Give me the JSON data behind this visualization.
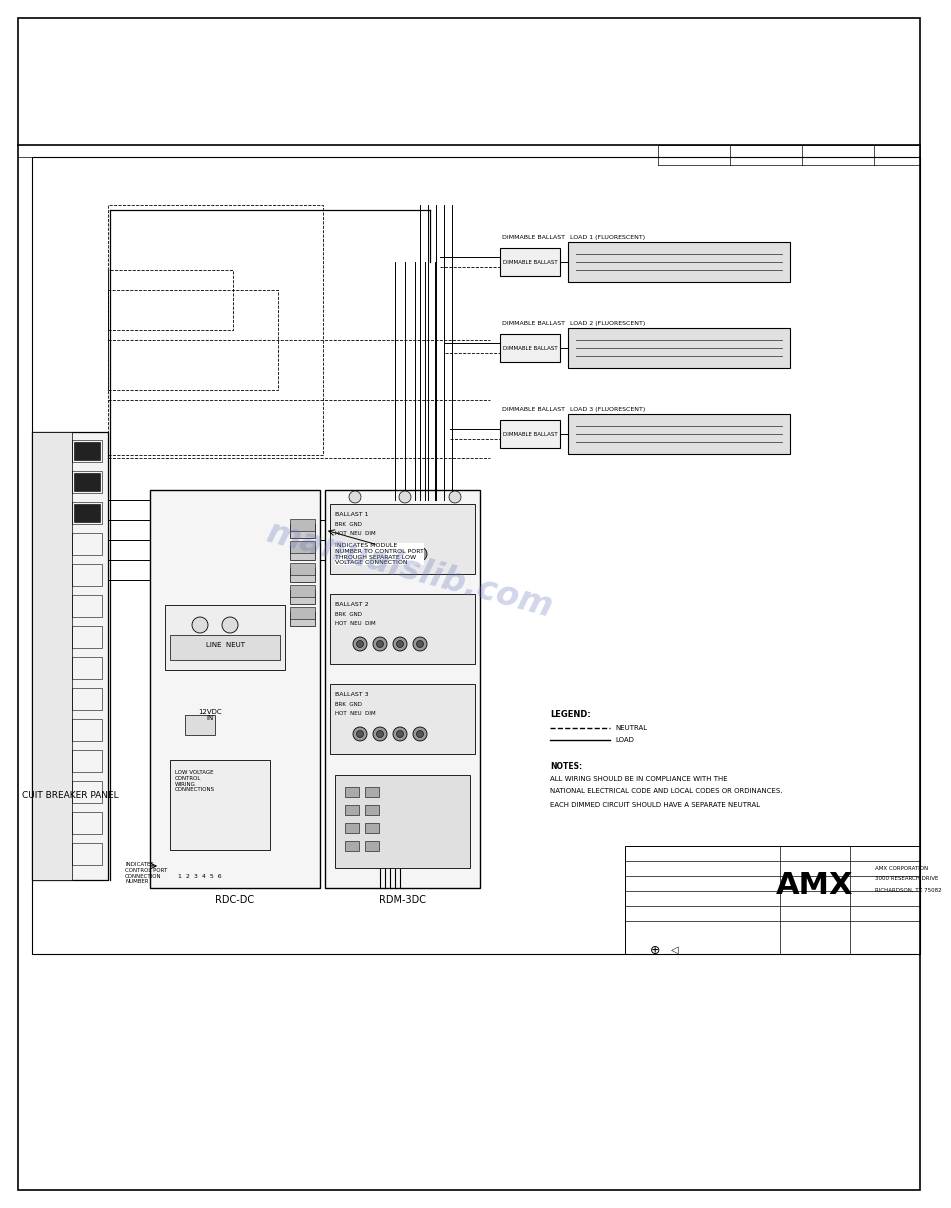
{
  "bg_color": "#ffffff",
  "watermark_text": "manualslib.com",
  "watermark_color": "#6677bb",
  "watermark_alpha": 0.3,
  "panel_label": "CUIT BREAKER PANEL",
  "rdc_label": "RDC-DC",
  "rdm_label": "RDM-3DC",
  "load1_label": "LOAD 1 (FLUORESCENT)",
  "load2_label": "LOAD 2 (FLUORESCENT)",
  "load3_label": "LOAD 3 (FLUORESCENT)",
  "ballast_label": "DIMMABLE BALLAST",
  "legend_neutral": "NEUTRAL",
  "legend_load": "LOAD",
  "notes_line1": "NOTES:",
  "notes_line2": "ALL WIRING SHOULD BE IN COMPLIANCE WITH THE",
  "notes_line3": "NATIONAL ELECTRICAL CODE AND LOCAL CODES OR ORDINANCES.",
  "notes_line4": "EACH DIMMED CIRCUIT SHOULD HAVE A SEPARATE NEUTRAL",
  "amx_company": "AMX CORPORATION",
  "amx_addr1": "3000 RESEARCH DRIVE",
  "amx_addr2": "RICHARDSON, TX 75082",
  "voltage_label": "12VDC\nIN",
  "line_input_label": "LINE  NEUT",
  "low_voltage_label": "LOW VOLTAGE\nCONTROL\nWIRING\nCONNECTIONS",
  "indicates_module_label": "INDICATES MODULE\nNUMBER TO CONTROL PORT\nTHROUGH SEPARATE LOW\nVOLTAGE CONNECTION",
  "indicates_control_label": "INDICATES\nCONTROL PORT\nCONNECTION\nNUMBER",
  "ballast1_s": "BALLAST 1\nBRK  GND\nHOT  NEU  DIM",
  "ballast2_s": "BALLAST 2\nBRK  GND\nHOT  NEU  DIM",
  "ballast3_s": "BALLAST 3\nBRK  GND\nHOT  NEU  DIM"
}
